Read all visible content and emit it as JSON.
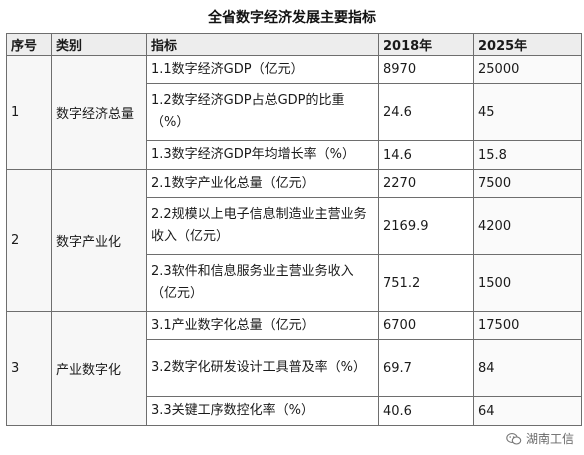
{
  "title": "全省数字经济发展主要指标",
  "headers": [
    "序号",
    "类别",
    "指标",
    "2018年",
    "2025年"
  ],
  "groups": [
    {
      "seq": "1",
      "category": "数字经济总量",
      "rows": [
        {
          "indicator": "1.1数字经济GDP（亿元）",
          "v2018": "8970",
          "v2025": "25000"
        },
        {
          "indicator": "1.2数字经济GDP占总GDP的比重（%）",
          "v2018": "24.6",
          "v2025": "45"
        },
        {
          "indicator": "1.3数字经济GDP年均增长率（%）",
          "v2018": "14.6",
          "v2025": "15.8"
        }
      ]
    },
    {
      "seq": "2",
      "category": "数字产业化",
      "rows": [
        {
          "indicator": "2.1数字产业化总量（亿元）",
          "v2018": "2270",
          "v2025": "7500"
        },
        {
          "indicator": "2.2规模以上电子信息制造业主营业务收入（亿元）",
          "v2018": "2169.9",
          "v2025": "4200"
        },
        {
          "indicator": "2.3软件和信息服务业主营业务收入（亿元）",
          "v2018": "751.2",
          "v2025": "1500"
        }
      ]
    },
    {
      "seq": "3",
      "category": "产业数字化",
      "rows": [
        {
          "indicator": "3.1产业数字化总量（亿元）",
          "v2018": "6700",
          "v2025": "17500"
        },
        {
          "indicator": "3.2数字化研发设计工具普及率（%）",
          "v2018": "69.7",
          "v2025": "84"
        },
        {
          "indicator": "3.3关键工序数控化率（%）",
          "v2018": "40.6",
          "v2025": "64"
        }
      ]
    }
  ],
  "watermark": {
    "text": "湖南工信",
    "icon": "wechat-icon"
  }
}
